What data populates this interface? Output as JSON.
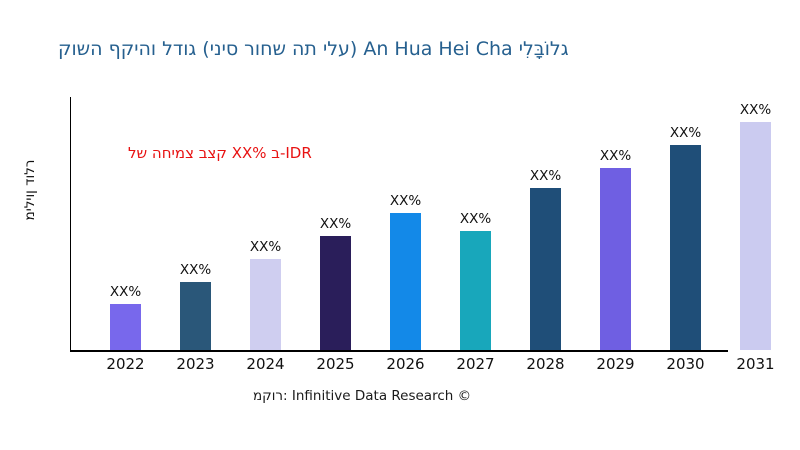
{
  "title": {
    "text": "גלוֹבָּלִי An Hua Hei Cha (עלי תה שחור סיני) גודל והיקף השוק",
    "color": "#26608F"
  },
  "annotation": {
    "text": "קצב צמיחה של XX% ב-IDR",
    "color": "#E81212"
  },
  "footer": {
    "text": "מקור: Infinitive Data Research ©"
  },
  "chart_data": {
    "type": "bar",
    "title": "גלוֹבָּלִי An Hua Hei Cha (עלי תה שחור סיני) גודל והיקף השוק",
    "categories": [
      "2022",
      "2023",
      "2024",
      "2025",
      "2026",
      "2027",
      "2028",
      "2029",
      "2030",
      "2031"
    ],
    "bar_value_labels": [
      "XX%",
      "XX%",
      "XX%",
      "XX%",
      "XX%",
      "XX%",
      "XX%",
      "XX%",
      "XX%",
      "XX%"
    ],
    "relative_heights_pct_of_max": [
      20,
      30,
      40,
      50,
      60,
      52,
      71,
      80,
      90,
      100
    ],
    "bar_colors": [
      "#7868EC",
      "#2A5779",
      "#CFCEF0",
      "#2A1E5A",
      "#1389E8",
      "#18A7BB",
      "#1F4E78",
      "#6F5FE2",
      "#1F4E78",
      "#CBCBF0"
    ],
    "ylabel": "מיליון דולר",
    "xlabel": "",
    "annotation": "קצב צמיחה של XX% ב-IDR",
    "source": "מקור: Infinitive Data Research ©",
    "y_tick_labels": [],
    "grid": false,
    "legend": "none"
  }
}
